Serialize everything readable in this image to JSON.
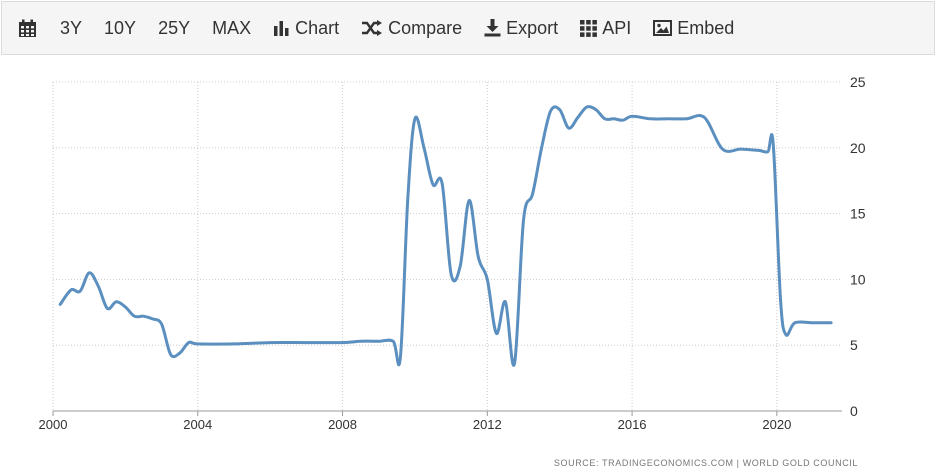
{
  "toolbar": {
    "calendar_icon": "calendar-icon",
    "buttons": [
      {
        "label": "3Y"
      },
      {
        "label": "10Y"
      },
      {
        "label": "25Y"
      },
      {
        "label": "MAX"
      },
      {
        "label": "Chart",
        "icon": "bar-chart-icon"
      },
      {
        "label": "Compare",
        "icon": "shuffle-icon"
      },
      {
        "label": "Export",
        "icon": "download-icon"
      },
      {
        "label": "API",
        "icon": "grid-icon"
      },
      {
        "label": "Embed",
        "icon": "image-icon"
      }
    ]
  },
  "source": "SOURCE: TRADINGECONOMICS.COM | WORLD GOLD COUNCIL",
  "chart_data": {
    "type": "line",
    "line_color": "#5b8fbf",
    "grid": "dotted",
    "y_axis_position": "right",
    "xlim": [
      2000,
      2021.8
    ],
    "ylim": [
      0,
      25
    ],
    "x_ticks": [
      2000,
      2004,
      2008,
      2012,
      2016,
      2020
    ],
    "y_ticks": [
      0,
      5,
      10,
      15,
      20,
      25
    ],
    "x_tick_labels": [
      "2000",
      "2004",
      "2008",
      "2012",
      "2016",
      "2020"
    ],
    "y_tick_labels": [
      "0",
      "5",
      "10",
      "15",
      "20",
      "25"
    ],
    "series": [
      {
        "x": [
          2000.2,
          2000.5,
          2000.75,
          2001.0,
          2001.25,
          2001.5,
          2001.75,
          2002.0,
          2002.25,
          2002.5,
          2002.75,
          2003.0,
          2003.25,
          2003.5,
          2003.75,
          2004.0,
          2005.0,
          2006.0,
          2007.0,
          2008.0,
          2008.5,
          2009.0,
          2009.4,
          2009.6,
          2009.8,
          2010.0,
          2010.25,
          2010.5,
          2010.75,
          2011.0,
          2011.25,
          2011.5,
          2011.75,
          2012.0,
          2012.25,
          2012.5,
          2012.75,
          2013.0,
          2013.25,
          2013.5,
          2013.75,
          2014.0,
          2014.25,
          2014.5,
          2014.75,
          2015.0,
          2015.25,
          2015.5,
          2015.75,
          2016.0,
          2016.5,
          2017.0,
          2017.5,
          2018.0,
          2018.5,
          2019.0,
          2019.5,
          2019.75,
          2019.9,
          2020.1,
          2020.25,
          2020.5,
          2021.0,
          2021.5
        ],
        "y": [
          8.1,
          9.2,
          9.1,
          10.5,
          9.5,
          7.8,
          8.3,
          7.9,
          7.2,
          7.2,
          7.0,
          6.6,
          4.3,
          4.4,
          5.2,
          5.1,
          5.1,
          5.2,
          5.2,
          5.2,
          5.3,
          5.3,
          5.3,
          4.1,
          16.0,
          22.2,
          20.0,
          17.2,
          17.3,
          10.4,
          11.0,
          16.0,
          11.7,
          10.0,
          5.9,
          8.3,
          3.6,
          14.5,
          16.5,
          20.0,
          22.8,
          22.9,
          21.5,
          22.3,
          23.1,
          22.9,
          22.2,
          22.2,
          22.1,
          22.4,
          22.2,
          22.2,
          22.2,
          22.3,
          19.9,
          19.9,
          19.8,
          19.7,
          20.3,
          8.5,
          5.8,
          6.7,
          6.7,
          6.7
        ]
      }
    ]
  }
}
